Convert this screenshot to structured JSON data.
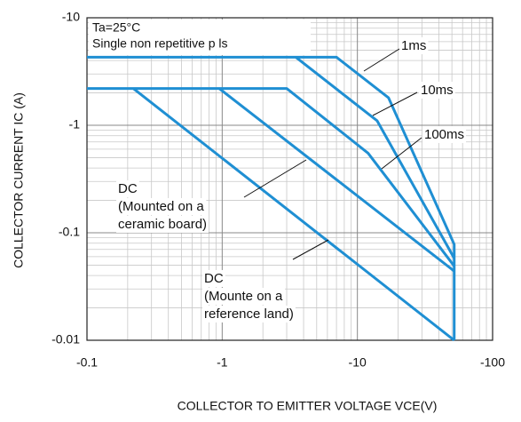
{
  "chart_data": {
    "type": "line",
    "xlabel": "COLLECTOR TO  EMITTER VOLTAGE VCE(V)",
    "ylabel": "COLLECTOR CURRENT IC (A)",
    "annotations": [
      "Ta=25°C",
      "Single non repetitive p   ls"
    ],
    "xscale": "log",
    "yscale": "log",
    "grid": true,
    "minor_grid": true,
    "xlim": [
      -0.1,
      -100
    ],
    "xticks": [
      -0.1,
      -1,
      -10,
      -100
    ],
    "ylim": [
      -0.01,
      -10
    ],
    "yticks": [
      -0.01,
      -0.1,
      -1,
      -10
    ],
    "series": [
      {
        "name": [
          "1ms"
        ],
        "color": "#1f8fd3",
        "x": [
          -0.1,
          -7,
          -17,
          -52,
          -52
        ],
        "values": [
          -4.3,
          -4.3,
          -1.8,
          -0.078,
          -0.01
        ]
      },
      {
        "name": [
          "10ms"
        ],
        "color": "#1f8fd3",
        "x": [
          -3.5,
          -14,
          -52
        ],
        "values": [
          -4.3,
          -1.1,
          -0.058
        ]
      },
      {
        "name": [
          "100ms"
        ],
        "color": "#1f8fd3",
        "x": [
          -0.1,
          -3,
          -12,
          -52
        ],
        "values": [
          -2.2,
          -2.2,
          -0.55,
          -0.049
        ]
      },
      {
        "name": [
          "DC",
          "(Mounted on a",
          "ceramic board)"
        ],
        "color": "#1f8fd3",
        "x": [
          -0.95,
          -52
        ],
        "values": [
          -2.2,
          -0.044
        ]
      },
      {
        "name": [
          "DC",
          "(Mounte on a",
          "reference land)"
        ],
        "color": "#1f8fd3",
        "x": [
          -0.22,
          -52
        ],
        "values": [
          -2.2,
          -0.01
        ]
      }
    ]
  }
}
